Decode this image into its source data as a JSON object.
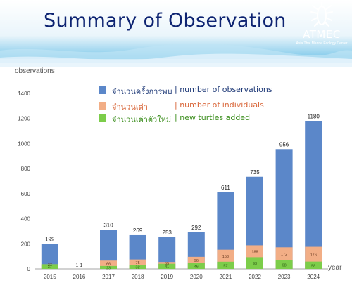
{
  "title": "Summary of Observation",
  "logo": {
    "name": "ATMEC",
    "subtitle": "Asia Thai Marine Ecology Center",
    "icon": "sea-turtle-icon"
  },
  "colors": {
    "observations": "#5b87c9",
    "individuals": "#f2ae86",
    "new_turtles": "#7ccd4a",
    "title": "#0e2472",
    "legend_observations": "#1f3a78",
    "legend_individuals": "#d9673a",
    "legend_new_turtles": "#3d8f1f"
  },
  "legend": [
    {
      "thai": "จำนวนครั้งการพบ",
      "en": "| number of observations",
      "color_key": "legend_observations",
      "swatch_key": "observations"
    },
    {
      "thai": "จำนวนเต่า",
      "en": "| number of individuals",
      "color_key": "legend_individuals",
      "swatch_key": "individuals"
    },
    {
      "thai": "จำนวนเต่าตัวใหม่",
      "en": "| new turtles added",
      "color_key": "legend_new_turtles",
      "swatch_key": "new_turtles"
    }
  ],
  "chart_data": {
    "type": "bar",
    "ylabel": "observations",
    "xlabel": "year",
    "ylim": [
      0,
      1400
    ],
    "yticks": [
      0,
      200,
      400,
      600,
      800,
      1000,
      1200,
      1400
    ],
    "categories": [
      "2015",
      "2016",
      "2017",
      "2018",
      "2019",
      "2020",
      "2021",
      "2022",
      "2023",
      "2024"
    ],
    "series": [
      {
        "key": "observations",
        "values": [
          199,
          1,
          310,
          269,
          253,
          292,
          611,
          735,
          956,
          1180
        ]
      },
      {
        "key": "individuals",
        "values": [
          37,
          1,
          66,
          75,
          55,
          96,
          153,
          188,
          172,
          176
        ]
      },
      {
        "key": "new_turtles",
        "values": [
          37,
          null,
          23,
          32,
          41,
          46,
          57,
          93,
          68,
          58
        ]
      }
    ],
    "grid": false
  }
}
